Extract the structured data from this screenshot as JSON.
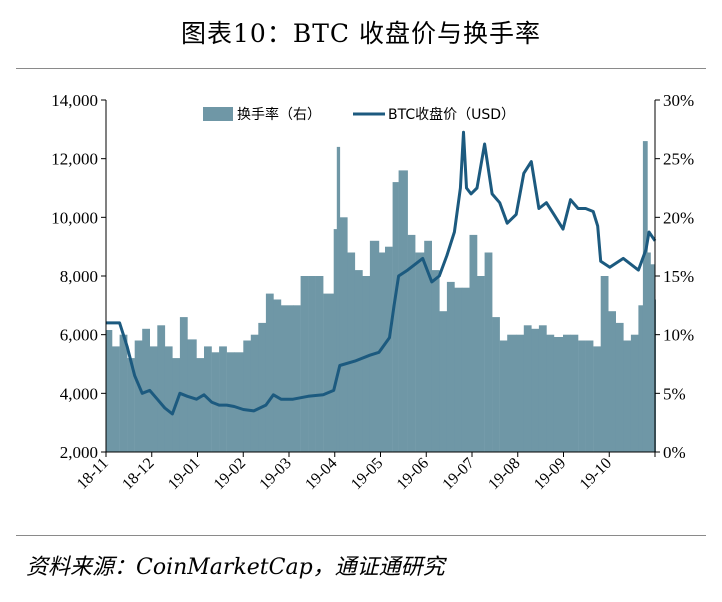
{
  "title": "图表10：BTC 收盘价与换手率",
  "source": "资料来源：CoinMarketCap，通证通研究",
  "chart_data": {
    "type": "bar+line",
    "title": "图表10：BTC 收盘价与换手率",
    "colors": {
      "bars": "#6f97a6",
      "line": "#1c5a7f"
    },
    "legend": {
      "placement": "top-center",
      "entries": [
        "换手率（右）",
        "BTC收盘价（USD）"
      ]
    },
    "left_axis": {
      "ylim": [
        2000,
        14000
      ],
      "ticks": [
        "2,000",
        "4,000",
        "6,000",
        "8,000",
        "10,000",
        "12,000",
        "14,000"
      ]
    },
    "right_axis": {
      "ylim": [
        0,
        30
      ],
      "ticks": [
        "0%",
        "5%",
        "10%",
        "15%",
        "20%",
        "25%",
        "30%"
      ]
    },
    "x_ticks": [
      "18-11",
      "18-12",
      "19-01",
      "19-02",
      "19-03",
      "19-04",
      "19-05",
      "19-06",
      "19-07",
      "19-08",
      "19-09",
      "19-10"
    ],
    "x_range": [
      "2018-11-01",
      "2019-10-31"
    ],
    "grid": false,
    "series": [
      {
        "name": "BTC收盘价（USD）",
        "kind": "line",
        "axis": "left",
        "points": [
          [
            "2018-11-01",
            6400
          ],
          [
            "2018-11-10",
            6400
          ],
          [
            "2018-11-15",
            5600
          ],
          [
            "2018-11-20",
            4600
          ],
          [
            "2018-11-25",
            4000
          ],
          [
            "2018-11-30",
            4100
          ],
          [
            "2018-12-05",
            3800
          ],
          [
            "2018-12-10",
            3500
          ],
          [
            "2018-12-15",
            3300
          ],
          [
            "2018-12-20",
            4000
          ],
          [
            "2018-12-25",
            3900
          ],
          [
            "2018-12-31",
            3800
          ],
          [
            "2019-01-05",
            3950
          ],
          [
            "2019-01-10",
            3700
          ],
          [
            "2019-01-15",
            3600
          ],
          [
            "2019-01-20",
            3600
          ],
          [
            "2019-01-25",
            3550
          ],
          [
            "2019-01-31",
            3450
          ],
          [
            "2019-02-07",
            3400
          ],
          [
            "2019-02-15",
            3600
          ],
          [
            "2019-02-20",
            3950
          ],
          [
            "2019-02-25",
            3800
          ],
          [
            "2019-03-05",
            3800
          ],
          [
            "2019-03-15",
            3900
          ],
          [
            "2019-03-25",
            3950
          ],
          [
            "2019-04-01",
            4100
          ],
          [
            "2019-04-05",
            4950
          ],
          [
            "2019-04-15",
            5100
          ],
          [
            "2019-04-25",
            5300
          ],
          [
            "2019-05-01",
            5400
          ],
          [
            "2019-05-08",
            5900
          ],
          [
            "2019-05-11",
            7000
          ],
          [
            "2019-05-14",
            8000
          ],
          [
            "2019-05-20",
            8200
          ],
          [
            "2019-05-30",
            8600
          ],
          [
            "2019-06-05",
            7800
          ],
          [
            "2019-06-10",
            8000
          ],
          [
            "2019-06-15",
            8700
          ],
          [
            "2019-06-20",
            9500
          ],
          [
            "2019-06-24",
            11000
          ],
          [
            "2019-06-26",
            12900
          ],
          [
            "2019-06-28",
            11000
          ],
          [
            "2019-07-01",
            10800
          ],
          [
            "2019-07-05",
            11000
          ],
          [
            "2019-07-10",
            12500
          ],
          [
            "2019-07-15",
            10800
          ],
          [
            "2019-07-20",
            10500
          ],
          [
            "2019-07-25",
            9800
          ],
          [
            "2019-07-31",
            10100
          ],
          [
            "2019-08-05",
            11500
          ],
          [
            "2019-08-10",
            11900
          ],
          [
            "2019-08-15",
            10300
          ],
          [
            "2019-08-20",
            10500
          ],
          [
            "2019-08-25",
            10100
          ],
          [
            "2019-08-31",
            9600
          ],
          [
            "2019-09-05",
            10600
          ],
          [
            "2019-09-10",
            10300
          ],
          [
            "2019-09-15",
            10300
          ],
          [
            "2019-09-20",
            10200
          ],
          [
            "2019-09-23",
            9700
          ],
          [
            "2019-09-25",
            8500
          ],
          [
            "2019-10-01",
            8300
          ],
          [
            "2019-10-10",
            8600
          ],
          [
            "2019-10-20",
            8200
          ],
          [
            "2019-10-25",
            8900
          ],
          [
            "2019-10-27",
            9500
          ],
          [
            "2019-10-31",
            9200
          ]
        ]
      },
      {
        "name": "换手率（右）",
        "kind": "bar",
        "axis": "right",
        "points": [
          [
            "2018-11-01",
            10.4
          ],
          [
            "2018-11-05",
            9.0
          ],
          [
            "2018-11-10",
            10.0
          ],
          [
            "2018-11-15",
            8.0
          ],
          [
            "2018-11-20",
            9.5
          ],
          [
            "2018-11-25",
            10.5
          ],
          [
            "2018-11-30",
            9.0
          ],
          [
            "2018-12-05",
            10.8
          ],
          [
            "2018-12-10",
            9.0
          ],
          [
            "2018-12-15",
            8.0
          ],
          [
            "2018-12-20",
            11.5
          ],
          [
            "2018-12-25",
            9.6
          ],
          [
            "2018-12-31",
            8.0
          ],
          [
            "2019-01-05",
            9.0
          ],
          [
            "2019-01-10",
            8.5
          ],
          [
            "2019-01-15",
            9.0
          ],
          [
            "2019-01-20",
            8.5
          ],
          [
            "2019-01-25",
            8.5
          ],
          [
            "2019-01-31",
            9.5
          ],
          [
            "2019-02-05",
            10.0
          ],
          [
            "2019-02-10",
            11.0
          ],
          [
            "2019-02-15",
            13.5
          ],
          [
            "2019-02-20",
            13.0
          ],
          [
            "2019-02-25",
            12.5
          ],
          [
            "2019-03-05",
            12.5
          ],
          [
            "2019-03-10",
            15.0
          ],
          [
            "2019-03-15",
            15.0
          ],
          [
            "2019-03-20",
            15.0
          ],
          [
            "2019-03-25",
            13.5
          ],
          [
            "2019-04-01",
            19.0
          ],
          [
            "2019-04-03",
            26.0
          ],
          [
            "2019-04-05",
            20.0
          ],
          [
            "2019-04-10",
            17.0
          ],
          [
            "2019-04-15",
            15.5
          ],
          [
            "2019-04-20",
            15.0
          ],
          [
            "2019-04-25",
            18.0
          ],
          [
            "2019-05-01",
            17.0
          ],
          [
            "2019-05-05",
            17.5
          ],
          [
            "2019-05-10",
            23.0
          ],
          [
            "2019-05-14",
            24.0
          ],
          [
            "2019-05-20",
            18.5
          ],
          [
            "2019-05-25",
            17.0
          ],
          [
            "2019-05-31",
            18.0
          ],
          [
            "2019-06-05",
            15.5
          ],
          [
            "2019-06-10",
            12.0
          ],
          [
            "2019-06-15",
            14.5
          ],
          [
            "2019-06-20",
            14.0
          ],
          [
            "2019-06-25",
            14.0
          ],
          [
            "2019-06-30",
            18.5
          ],
          [
            "2019-07-05",
            15.0
          ],
          [
            "2019-07-10",
            17.0
          ],
          [
            "2019-07-15",
            11.5
          ],
          [
            "2019-07-20",
            9.5
          ],
          [
            "2019-07-25",
            10.0
          ],
          [
            "2019-07-31",
            10.0
          ],
          [
            "2019-08-05",
            10.8
          ],
          [
            "2019-08-10",
            10.5
          ],
          [
            "2019-08-15",
            10.8
          ],
          [
            "2019-08-20",
            10.0
          ],
          [
            "2019-08-25",
            9.8
          ],
          [
            "2019-08-31",
            10.0
          ],
          [
            "2019-09-05",
            10.0
          ],
          [
            "2019-09-10",
            9.5
          ],
          [
            "2019-09-15",
            9.5
          ],
          [
            "2019-09-20",
            9.0
          ],
          [
            "2019-09-25",
            15.0
          ],
          [
            "2019-09-30",
            12.0
          ],
          [
            "2019-10-05",
            11.0
          ],
          [
            "2019-10-10",
            9.5
          ],
          [
            "2019-10-15",
            10.0
          ],
          [
            "2019-10-20",
            12.5
          ],
          [
            "2019-10-23",
            26.5
          ],
          [
            "2019-10-26",
            17.0
          ],
          [
            "2019-10-28",
            16.0
          ],
          [
            "2019-10-31",
            13.0
          ]
        ]
      }
    ]
  }
}
